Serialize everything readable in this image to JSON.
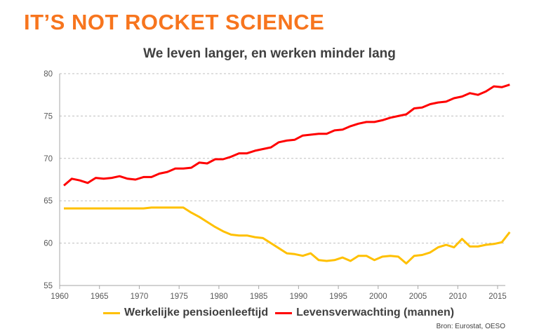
{
  "headline": "IT’S NOT ROCKET SCIENCE",
  "source": "Bron: Eurostat, OESO",
  "colors": {
    "headline": "#F7751E",
    "pension": "#FFC000",
    "life": "#FF0000"
  },
  "chart_data": {
    "type": "line",
    "title": "We leven langer, en werken minder lang",
    "xlabel": "",
    "ylabel": "",
    "xlim": [
      1960,
      2017
    ],
    "ylim": [
      55,
      80
    ],
    "yticks": [
      "55",
      "60",
      "65",
      "70",
      "75",
      "80"
    ],
    "xticks": [
      "1960",
      "1965",
      "1970",
      "1975",
      "1980",
      "1985",
      "1990",
      "1995",
      "2000",
      "2005",
      "2010",
      "2015"
    ],
    "grid": "horizontal dashed",
    "legend_position": "bottom",
    "x": [
      1960,
      1961,
      1962,
      1963,
      1964,
      1965,
      1966,
      1967,
      1968,
      1969,
      1970,
      1971,
      1972,
      1973,
      1974,
      1975,
      1976,
      1977,
      1978,
      1979,
      1980,
      1981,
      1982,
      1983,
      1984,
      1985,
      1986,
      1987,
      1988,
      1989,
      1990,
      1991,
      1992,
      1993,
      1994,
      1995,
      1996,
      1997,
      1998,
      1999,
      2000,
      2001,
      2002,
      2003,
      2004,
      2005,
      2006,
      2007,
      2008,
      2009,
      2010,
      2011,
      2012,
      2013,
      2014,
      2015,
      2016
    ],
    "series": [
      {
        "name": "Werkelijke pensioenleeftijd",
        "color": "#FFC000",
        "values": [
          64.1,
          64.1,
          64.1,
          64.1,
          64.1,
          64.1,
          64.1,
          64.1,
          64.1,
          64.1,
          64.1,
          64.2,
          64.2,
          64.2,
          64.2,
          64.2,
          63.6,
          63.1,
          62.5,
          61.9,
          61.4,
          61.0,
          60.9,
          60.9,
          60.7,
          60.6,
          60.0,
          59.4,
          58.8,
          58.7,
          58.5,
          58.8,
          58.0,
          57.9,
          58.0,
          58.3,
          57.9,
          58.5,
          58.5,
          58.0,
          58.4,
          58.5,
          58.4,
          57.6,
          58.5,
          58.6,
          58.9,
          59.5,
          59.8,
          59.5,
          60.5,
          59.6,
          59.6,
          59.8,
          59.9,
          60.1,
          61.3
        ]
      },
      {
        "name": "Levensverwachting (mannen)",
        "color": "#FF0000",
        "values": [
          66.8,
          67.6,
          67.4,
          67.1,
          67.7,
          67.6,
          67.7,
          67.9,
          67.6,
          67.5,
          67.8,
          67.8,
          68.2,
          68.4,
          68.8,
          68.8,
          68.9,
          69.5,
          69.4,
          69.9,
          69.9,
          70.2,
          70.6,
          70.6,
          70.9,
          71.1,
          71.3,
          71.9,
          72.1,
          72.2,
          72.7,
          72.8,
          72.9,
          72.9,
          73.3,
          73.4,
          73.8,
          74.1,
          74.3,
          74.3,
          74.5,
          74.8,
          75.0,
          75.2,
          75.9,
          76.0,
          76.4,
          76.6,
          76.7,
          77.1,
          77.3,
          77.7,
          77.5,
          77.9,
          78.5,
          78.4,
          78.7
        ]
      }
    ]
  }
}
